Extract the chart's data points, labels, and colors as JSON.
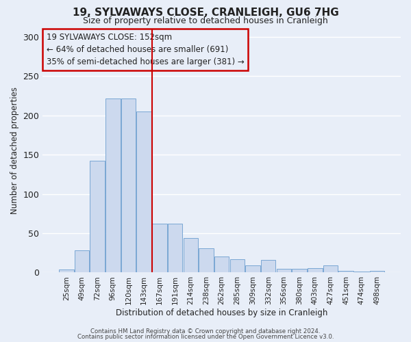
{
  "title": "19, SYLVAWAYS CLOSE, CRANLEIGH, GU6 7HG",
  "subtitle": "Size of property relative to detached houses in Cranleigh",
  "xlabel": "Distribution of detached houses by size in Cranleigh",
  "ylabel": "Number of detached properties",
  "bar_labels": [
    "25sqm",
    "49sqm",
    "72sqm",
    "96sqm",
    "120sqm",
    "143sqm",
    "167sqm",
    "191sqm",
    "214sqm",
    "238sqm",
    "262sqm",
    "285sqm",
    "309sqm",
    "332sqm",
    "356sqm",
    "380sqm",
    "403sqm",
    "427sqm",
    "451sqm",
    "474sqm",
    "498sqm"
  ],
  "bar_values": [
    4,
    28,
    142,
    222,
    222,
    205,
    62,
    62,
    44,
    31,
    20,
    17,
    9,
    16,
    5,
    5,
    6,
    9,
    2,
    1,
    2
  ],
  "bar_color": "#ccd9ee",
  "bar_edge_color": "#7aa7d4",
  "vline_x": 5.5,
  "vline_color": "#cc0000",
  "ylim": [
    0,
    310
  ],
  "yticks": [
    0,
    50,
    100,
    150,
    200,
    250,
    300
  ],
  "annotation_title": "19 SYLVAWAYS CLOSE: 152sqm",
  "annotation_line1": "← 64% of detached houses are smaller (691)",
  "annotation_line2": "35% of semi-detached houses are larger (381) →",
  "annotation_box_color": "#cc0000",
  "footer1": "Contains HM Land Registry data © Crown copyright and database right 2024.",
  "footer2": "Contains public sector information licensed under the Open Government Licence v3.0.",
  "background_color": "#e8eef8",
  "grid_color": "#ffffff",
  "text_color": "#222222"
}
